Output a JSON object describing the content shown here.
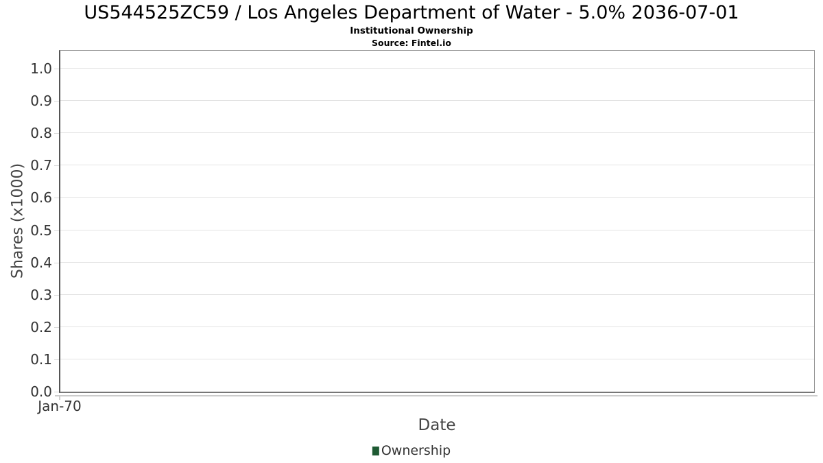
{
  "chart_data": {
    "type": "line",
    "title": "US544525ZC59 / Los Angeles Department of Water - 5.0% 2036-07-01",
    "subtitle": "Institutional Ownership",
    "source": "Source: Fintel.io",
    "xlabel": "Date",
    "ylabel": "Shares (x1000)",
    "x_tick_labels": [
      "Jan-70"
    ],
    "y_tick_labels": [
      "0.0",
      "0.1",
      "0.2",
      "0.3",
      "0.4",
      "0.5",
      "0.6",
      "0.7",
      "0.8",
      "0.9",
      "1.0"
    ],
    "ylim": [
      0.0,
      1.06
    ],
    "grid": true,
    "legend_position": "bottom-center",
    "series": [
      {
        "name": "Ownership",
        "color": "#1e5a33",
        "marker": "square",
        "x": [],
        "values": []
      }
    ]
  },
  "colors": {
    "background": "#ffffff",
    "grid_line": "#e2e2e2",
    "plot_border": "#999999",
    "y_axis_line": "#555555",
    "x_axis_line": "#cccccc",
    "tick_label_text": "#333333",
    "axis_title_text": "#444444",
    "title_text": "#000000",
    "legend_marker": "#1e5a33"
  }
}
